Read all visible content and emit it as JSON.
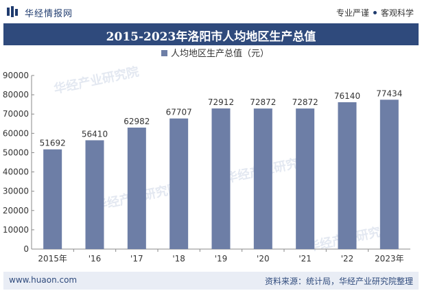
{
  "header": {
    "brand": "华经情报网",
    "tag1": "专业严谨",
    "tag2": "客观科学"
  },
  "title": "2015-2023年洛阳市人均地区生产总值",
  "footer": {
    "url": "www.huaon.com",
    "source": "资料来源：统计局，华经产业研究院整理"
  },
  "watermark": "华经产业研究院",
  "colors": {
    "bar": "#6d7ea6",
    "titlebar": "#2f4a7c",
    "text": "#333333"
  },
  "chart_data": {
    "type": "bar",
    "legend": "人均地区生产总值（元）",
    "legend_position": "top-center",
    "categories": [
      "2015年",
      "'16",
      "'17",
      "'18",
      "'19",
      "'20",
      "'21",
      "'22",
      "2023年"
    ],
    "series": [
      {
        "name": "人均地区生产总值（元）",
        "values": [
          51692,
          56410,
          62982,
          67707,
          72912,
          72872,
          72872,
          76140,
          77434
        ]
      }
    ],
    "ylim": [
      0,
      90000
    ],
    "yticks": [
      0,
      10000,
      20000,
      30000,
      40000,
      50000,
      60000,
      70000,
      80000,
      90000
    ],
    "grid": false
  }
}
